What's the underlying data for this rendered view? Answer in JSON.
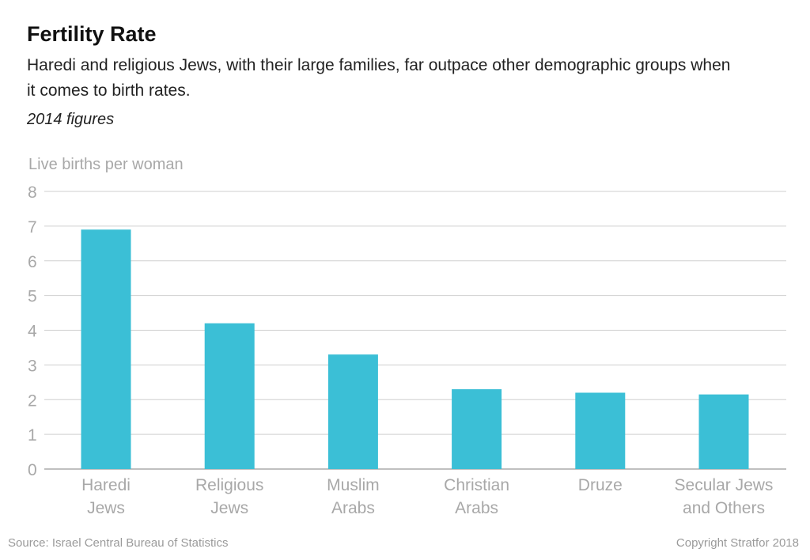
{
  "title": "Fertility Rate",
  "subtitle": "Haredi and religious Jews, with their large families, far outpace other demographic groups when it comes to birth rates.",
  "note": "2014 figures",
  "source": "Source: Israel Central Bureau of Statistics",
  "copyright": "Copyright Stratfor 2018",
  "colors": {
    "bar": "#3bbfd6",
    "grid": "#cfcfcf",
    "axis": "#9a9a9a",
    "tick_label": "#a8a8a8"
  },
  "chart_data": {
    "type": "bar",
    "title": "Fertility Rate",
    "xlabel": "",
    "ylabel": "Live births per woman",
    "categories": [
      [
        "Haredi",
        "Jews"
      ],
      [
        "Religious",
        "Jews"
      ],
      [
        "Muslim",
        "Arabs"
      ],
      [
        "Christian",
        "Arabs"
      ],
      [
        "Druze"
      ],
      [
        "Secular Jews",
        "and Others"
      ]
    ],
    "values": [
      6.9,
      4.2,
      3.3,
      2.3,
      2.2,
      2.15
    ],
    "ylim": [
      0,
      8
    ],
    "yticks": [
      0,
      1,
      2,
      3,
      4,
      5,
      6,
      7,
      8
    ],
    "grid": true
  }
}
